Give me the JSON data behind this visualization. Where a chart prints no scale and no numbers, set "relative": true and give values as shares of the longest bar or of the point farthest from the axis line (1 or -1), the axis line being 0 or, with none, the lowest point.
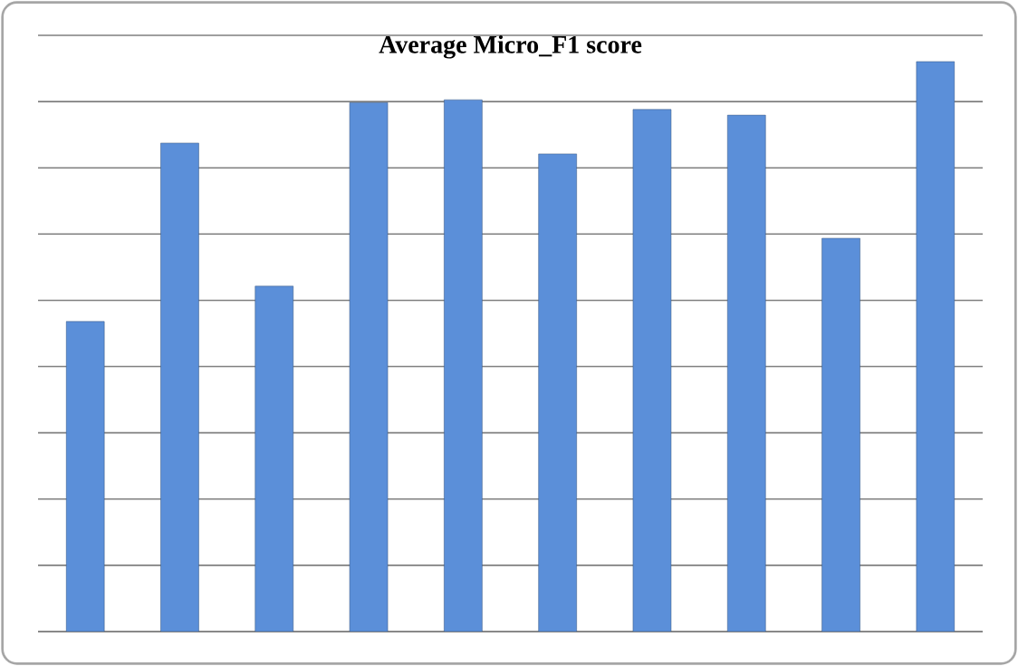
{
  "chart_data": {
    "type": "bar",
    "title": "Average Micro_F1 score",
    "relative": true,
    "categories": [
      null,
      null,
      null,
      null,
      null,
      null,
      null,
      null,
      null,
      null
    ],
    "color": "#5b8fd9",
    "grid": "y",
    "values": [
      0.544,
      0.857,
      0.606,
      0.928,
      0.933,
      0.838,
      0.916,
      0.906,
      0.69,
      1
    ]
  }
}
